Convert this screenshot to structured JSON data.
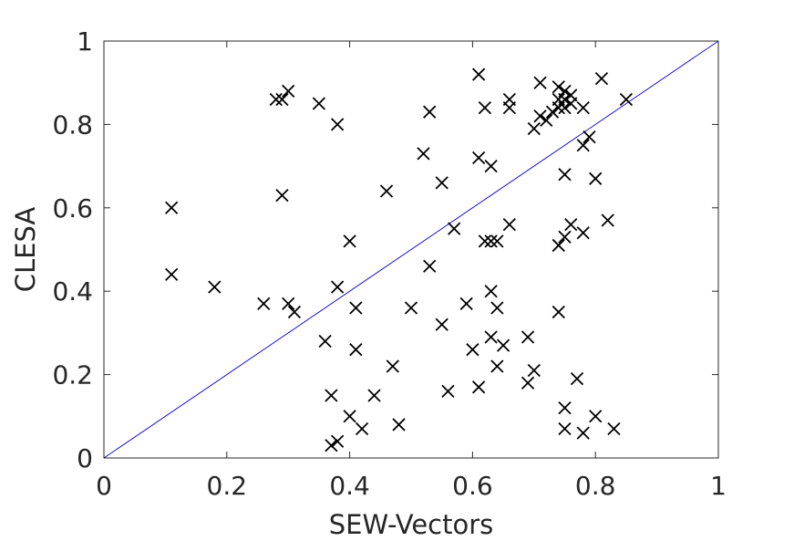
{
  "chart_data": {
    "type": "scatter",
    "title": "",
    "xlabel": "SEW-Vectors",
    "ylabel": "CLESA",
    "xlim": [
      0,
      1
    ],
    "ylim": [
      0,
      1
    ],
    "xticks": [
      0,
      0.2,
      0.4,
      0.6,
      0.8,
      1
    ],
    "yticks": [
      0,
      0.2,
      0.4,
      0.6,
      0.8,
      1
    ],
    "xtick_labels": [
      "0",
      "0.2",
      "0.4",
      "0.6",
      "0.8",
      "1"
    ],
    "ytick_labels": [
      "0",
      "0.2",
      "0.4",
      "0.6",
      "0.8",
      "1"
    ],
    "grid": false,
    "legend": "none",
    "marker": "x",
    "marker_color": "#000000",
    "reference_line": {
      "from": [
        0,
        0
      ],
      "to": [
        1,
        1
      ],
      "color": "#0000cc"
    },
    "points": [
      [
        0.11,
        0.6
      ],
      [
        0.11,
        0.44
      ],
      [
        0.18,
        0.41
      ],
      [
        0.26,
        0.37
      ],
      [
        0.28,
        0.86
      ],
      [
        0.29,
        0.86
      ],
      [
        0.29,
        0.63
      ],
      [
        0.3,
        0.88
      ],
      [
        0.3,
        0.37
      ],
      [
        0.31,
        0.35
      ],
      [
        0.35,
        0.85
      ],
      [
        0.36,
        0.28
      ],
      [
        0.37,
        0.15
      ],
      [
        0.37,
        0.03
      ],
      [
        0.38,
        0.8
      ],
      [
        0.38,
        0.41
      ],
      [
        0.38,
        0.04
      ],
      [
        0.4,
        0.52
      ],
      [
        0.4,
        0.1
      ],
      [
        0.41,
        0.36
      ],
      [
        0.41,
        0.26
      ],
      [
        0.42,
        0.07
      ],
      [
        0.44,
        0.15
      ],
      [
        0.46,
        0.64
      ],
      [
        0.47,
        0.22
      ],
      [
        0.48,
        0.08
      ],
      [
        0.5,
        0.36
      ],
      [
        0.52,
        0.73
      ],
      [
        0.53,
        0.83
      ],
      [
        0.53,
        0.46
      ],
      [
        0.55,
        0.66
      ],
      [
        0.55,
        0.32
      ],
      [
        0.56,
        0.16
      ],
      [
        0.57,
        0.55
      ],
      [
        0.59,
        0.37
      ],
      [
        0.6,
        0.26
      ],
      [
        0.61,
        0.92
      ],
      [
        0.61,
        0.72
      ],
      [
        0.61,
        0.17
      ],
      [
        0.62,
        0.84
      ],
      [
        0.62,
        0.52
      ],
      [
        0.63,
        0.7
      ],
      [
        0.63,
        0.52
      ],
      [
        0.63,
        0.4
      ],
      [
        0.63,
        0.29
      ],
      [
        0.64,
        0.52
      ],
      [
        0.64,
        0.36
      ],
      [
        0.64,
        0.22
      ],
      [
        0.65,
        0.27
      ],
      [
        0.66,
        0.86
      ],
      [
        0.66,
        0.84
      ],
      [
        0.66,
        0.56
      ],
      [
        0.69,
        0.29
      ],
      [
        0.69,
        0.18
      ],
      [
        0.7,
        0.79
      ],
      [
        0.7,
        0.21
      ],
      [
        0.71,
        0.9
      ],
      [
        0.71,
        0.82
      ],
      [
        0.72,
        0.81
      ],
      [
        0.73,
        0.83
      ],
      [
        0.74,
        0.89
      ],
      [
        0.74,
        0.86
      ],
      [
        0.74,
        0.84
      ],
      [
        0.74,
        0.51
      ],
      [
        0.74,
        0.35
      ],
      [
        0.75,
        0.88
      ],
      [
        0.75,
        0.86
      ],
      [
        0.75,
        0.84
      ],
      [
        0.75,
        0.68
      ],
      [
        0.75,
        0.53
      ],
      [
        0.75,
        0.12
      ],
      [
        0.75,
        0.07
      ],
      [
        0.76,
        0.87
      ],
      [
        0.76,
        0.85
      ],
      [
        0.76,
        0.56
      ],
      [
        0.77,
        0.19
      ],
      [
        0.78,
        0.84
      ],
      [
        0.78,
        0.75
      ],
      [
        0.78,
        0.54
      ],
      [
        0.78,
        0.06
      ],
      [
        0.79,
        0.77
      ],
      [
        0.8,
        0.67
      ],
      [
        0.8,
        0.1
      ],
      [
        0.81,
        0.91
      ],
      [
        0.82,
        0.57
      ],
      [
        0.83,
        0.07
      ],
      [
        0.85,
        0.86
      ]
    ]
  }
}
